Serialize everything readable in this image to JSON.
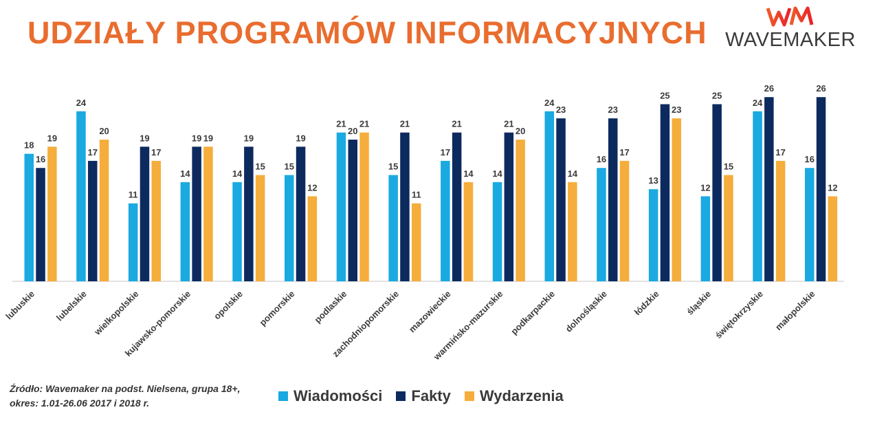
{
  "title": "UDZIAŁY PROGRAMÓW INFORMACYJNYCH",
  "logo": {
    "monogram": "WM",
    "text": "WAVEMAKER"
  },
  "source": {
    "line1": "Źródło: Wavemaker na podst. Nielsena, grupa 18+,",
    "line2": "okres: 1.01-26.06 2017 i 2018 r."
  },
  "colors": {
    "wiadomosci": "#1aa9e1",
    "fakty": "#0d2a5f",
    "wydarzenia": "#f5ad3c",
    "title": "#e96d2f"
  },
  "chart_data": {
    "type": "bar",
    "title": "UDZIAŁY PROGRAMÓW INFORMACYJNYCH",
    "xlabel": "",
    "ylabel": "",
    "ylim": [
      0,
      28
    ],
    "grid": false,
    "legend_position": "bottom",
    "categories": [
      "lubuskie",
      "lubelskie",
      "wielkopolskie",
      "kujawsko-pomorskie",
      "opolskie",
      "pomorskie",
      "podlaskie",
      "zachodniopomorskie",
      "mazowieckie",
      "warmińsko-mazurskie",
      "podkarpackie",
      "dolnośląskie",
      "łódzkie",
      "śląskie",
      "świętokrzyskie",
      "małopolskie"
    ],
    "series": [
      {
        "name": "Wiadomości",
        "color": "#1aa9e1",
        "values": [
          18,
          24,
          11,
          14,
          14,
          15,
          21,
          15,
          17,
          14,
          24,
          16,
          13,
          12,
          24,
          16
        ]
      },
      {
        "name": "Fakty",
        "color": "#0d2a5f",
        "values": [
          16,
          17,
          19,
          19,
          19,
          19,
          20,
          21,
          21,
          21,
          23,
          23,
          25,
          25,
          26,
          26
        ]
      },
      {
        "name": "Wydarzenia",
        "color": "#f5ad3c",
        "values": [
          19,
          20,
          17,
          19,
          15,
          12,
          21,
          11,
          14,
          20,
          14,
          17,
          23,
          15,
          17,
          12
        ]
      }
    ]
  }
}
